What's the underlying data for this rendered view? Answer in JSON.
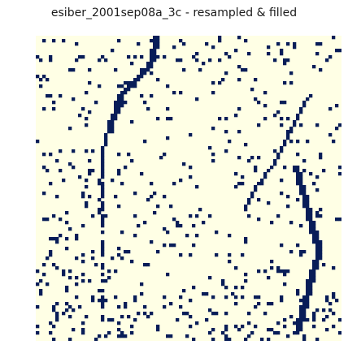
{
  "chart_data": {
    "type": "heatmap",
    "title": "esiber_2001sep08a_3c - resampled & filled",
    "xlabel": "",
    "ylabel": "",
    "grid": false,
    "axes_visible": false,
    "colormap": {
      "low": "#ffffe5",
      "high": "#081d58"
    },
    "description": "binary grid: most cells empty, a few dark vertical streaks and sparse scattered dark cells",
    "features": [
      {
        "kind": "streak",
        "path_cols": [
          36,
          36,
          35,
          35,
          34,
          33,
          31,
          28,
          27,
          25,
          24,
          24,
          23,
          22,
          22,
          21,
          21,
          20,
          20,
          20,
          20,
          20,
          19,
          20,
          20,
          19,
          20,
          19,
          20,
          19
        ]
      },
      {
        "kind": "streak",
        "path_cols": [
          60,
          58,
          57,
          56,
          55,
          54,
          53,
          52,
          51,
          50,
          49,
          48,
          46,
          45,
          43,
          42,
          41,
          40,
          39
        ]
      },
      {
        "kind": "streak",
        "path_cols": [
          62,
          63,
          64,
          65,
          66,
          67,
          68,
          69,
          68,
          67,
          66,
          65,
          64,
          63,
          62
        ]
      }
    ]
  }
}
